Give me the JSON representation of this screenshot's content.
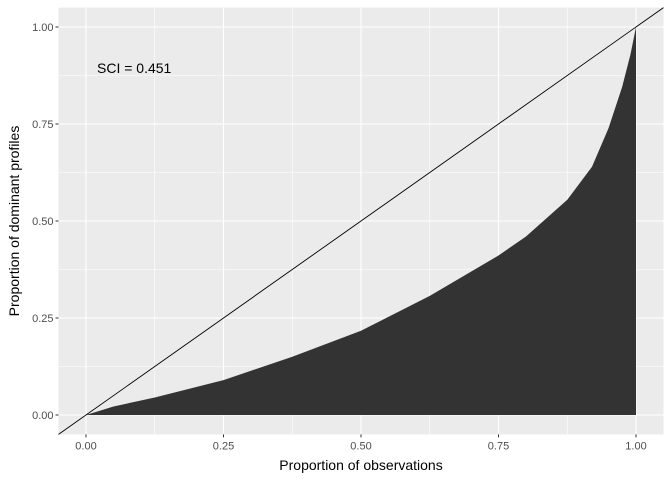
{
  "chart_data": {
    "type": "area",
    "title": "",
    "xlabel": "Proportion of observations",
    "ylabel": "Proportion of dominant profiles",
    "xlim": [
      -0.05,
      1.05
    ],
    "ylim": [
      -0.05,
      1.05
    ],
    "xticks": [
      0,
      0.25,
      0.5,
      0.75,
      1
    ],
    "xtick_labels": [
      "0.00",
      "0.25",
      "0.50",
      "0.75",
      "1.00"
    ],
    "yticks": [
      0,
      0.25,
      0.5,
      0.75,
      1
    ],
    "ytick_labels": [
      "0.00",
      "0.25",
      "0.50",
      "0.75",
      "1.00"
    ],
    "grid": true,
    "annotation": "SCI =  0.451",
    "reference_line": {
      "slope": 1,
      "intercept": 0
    },
    "series": [
      {
        "x": [
          0,
          0.05,
          0.125,
          0.25,
          0.375,
          0.5,
          0.625,
          0.75,
          0.8,
          0.875,
          0.92,
          0.95,
          0.975,
          0.99,
          1
        ],
        "y": [
          0,
          0.022,
          0.045,
          0.09,
          0.15,
          0.217,
          0.307,
          0.411,
          0.46,
          0.555,
          0.64,
          0.739,
          0.846,
          0.93,
          1.0
        ]
      }
    ],
    "colors": {
      "panel": "#ebebeb",
      "grid": "#ffffff",
      "fill": "#333333",
      "line": "#000000",
      "tick_text": "#4d4d4d"
    }
  }
}
